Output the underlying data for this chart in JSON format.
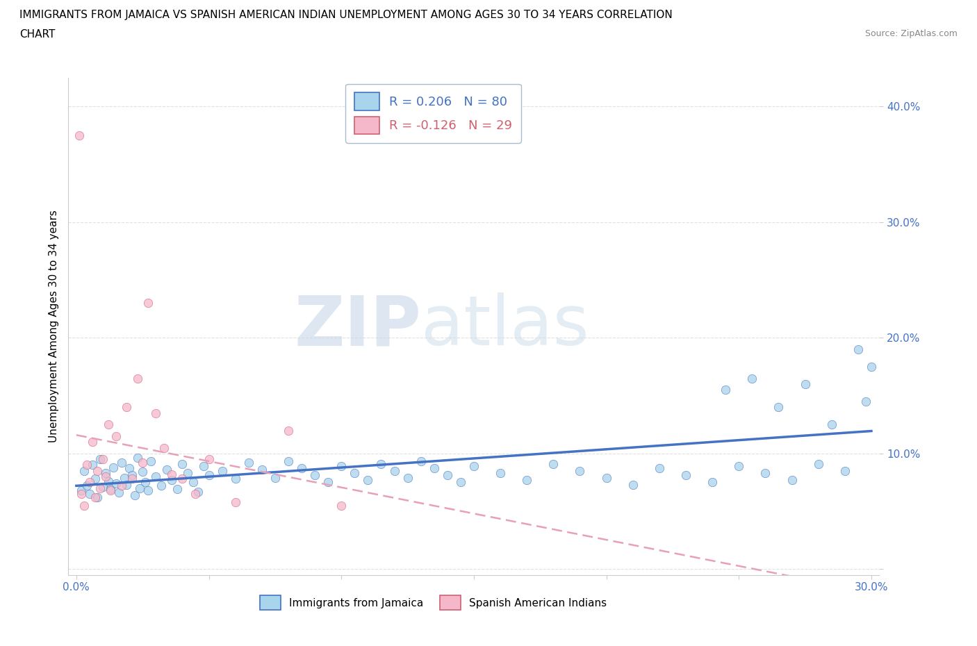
{
  "title_line1": "IMMIGRANTS FROM JAMAICA VS SPANISH AMERICAN INDIAN UNEMPLOYMENT AMONG AGES 30 TO 34 YEARS CORRELATION",
  "title_line2": "CHART",
  "source_text": "Source: ZipAtlas.com",
  "ylabel": "Unemployment Among Ages 30 to 34 years",
  "xlim": [
    -0.003,
    0.303
  ],
  "ylim": [
    -0.005,
    0.425
  ],
  "xticks": [
    0.0,
    0.05,
    0.1,
    0.15,
    0.2,
    0.25,
    0.3
  ],
  "yticks": [
    0.0,
    0.1,
    0.2,
    0.3,
    0.4
  ],
  "xtick_labels": [
    "0.0%",
    "",
    "",
    "",
    "",
    "",
    "30.0%"
  ],
  "ytick_labels": [
    "",
    "10.0%",
    "20.0%",
    "30.0%",
    "40.0%"
  ],
  "legend_label_1": "Immigrants from Jamaica",
  "legend_label_2": "Spanish American Indians",
  "r1": "0.206",
  "n1": "80",
  "r2": "-0.126",
  "n2": "29",
  "color_blue": "#A8D4EC",
  "color_pink": "#F5B8CB",
  "color_blue_dark": "#4472C4",
  "color_pink_dark": "#D06070",
  "color_pink_trendline": "#E8A0B8",
  "background": "#FFFFFF",
  "grid_color": "#DDDDDD",
  "blue_x": [
    0.002,
    0.003,
    0.004,
    0.005,
    0.006,
    0.007,
    0.008,
    0.009,
    0.01,
    0.011,
    0.012,
    0.013,
    0.014,
    0.015,
    0.016,
    0.017,
    0.018,
    0.019,
    0.02,
    0.021,
    0.022,
    0.023,
    0.024,
    0.025,
    0.026,
    0.027,
    0.028,
    0.03,
    0.032,
    0.034,
    0.036,
    0.038,
    0.04,
    0.042,
    0.044,
    0.046,
    0.048,
    0.05,
    0.055,
    0.06,
    0.065,
    0.07,
    0.075,
    0.08,
    0.085,
    0.09,
    0.095,
    0.1,
    0.105,
    0.11,
    0.115,
    0.12,
    0.125,
    0.13,
    0.135,
    0.14,
    0.145,
    0.15,
    0.16,
    0.17,
    0.18,
    0.19,
    0.2,
    0.21,
    0.22,
    0.23,
    0.24,
    0.25,
    0.26,
    0.27,
    0.28,
    0.29,
    0.295,
    0.298,
    0.3,
    0.285,
    0.275,
    0.265,
    0.255,
    0.245
  ],
  "blue_y": [
    0.068,
    0.085,
    0.072,
    0.065,
    0.09,
    0.078,
    0.062,
    0.095,
    0.071,
    0.083,
    0.076,
    0.069,
    0.088,
    0.074,
    0.066,
    0.092,
    0.079,
    0.073,
    0.087,
    0.081,
    0.064,
    0.096,
    0.07,
    0.084,
    0.075,
    0.068,
    0.093,
    0.08,
    0.072,
    0.086,
    0.077,
    0.069,
    0.091,
    0.083,
    0.075,
    0.067,
    0.089,
    0.081,
    0.085,
    0.078,
    0.092,
    0.086,
    0.079,
    0.093,
    0.087,
    0.081,
    0.075,
    0.089,
    0.083,
    0.077,
    0.091,
    0.085,
    0.079,
    0.093,
    0.087,
    0.081,
    0.075,
    0.089,
    0.083,
    0.077,
    0.091,
    0.085,
    0.079,
    0.073,
    0.087,
    0.081,
    0.075,
    0.089,
    0.083,
    0.077,
    0.091,
    0.085,
    0.19,
    0.145,
    0.175,
    0.125,
    0.16,
    0.14,
    0.165,
    0.155
  ],
  "pink_x": [
    0.001,
    0.002,
    0.003,
    0.004,
    0.005,
    0.006,
    0.007,
    0.008,
    0.009,
    0.01,
    0.011,
    0.012,
    0.013,
    0.015,
    0.017,
    0.019,
    0.021,
    0.023,
    0.025,
    0.027,
    0.03,
    0.033,
    0.036,
    0.04,
    0.045,
    0.05,
    0.06,
    0.08,
    0.1
  ],
  "pink_y": [
    0.375,
    0.065,
    0.055,
    0.09,
    0.075,
    0.11,
    0.062,
    0.085,
    0.07,
    0.095,
    0.08,
    0.125,
    0.068,
    0.115,
    0.072,
    0.14,
    0.078,
    0.165,
    0.092,
    0.23,
    0.135,
    0.105,
    0.082,
    0.078,
    0.065,
    0.095,
    0.058,
    0.12,
    0.055
  ]
}
